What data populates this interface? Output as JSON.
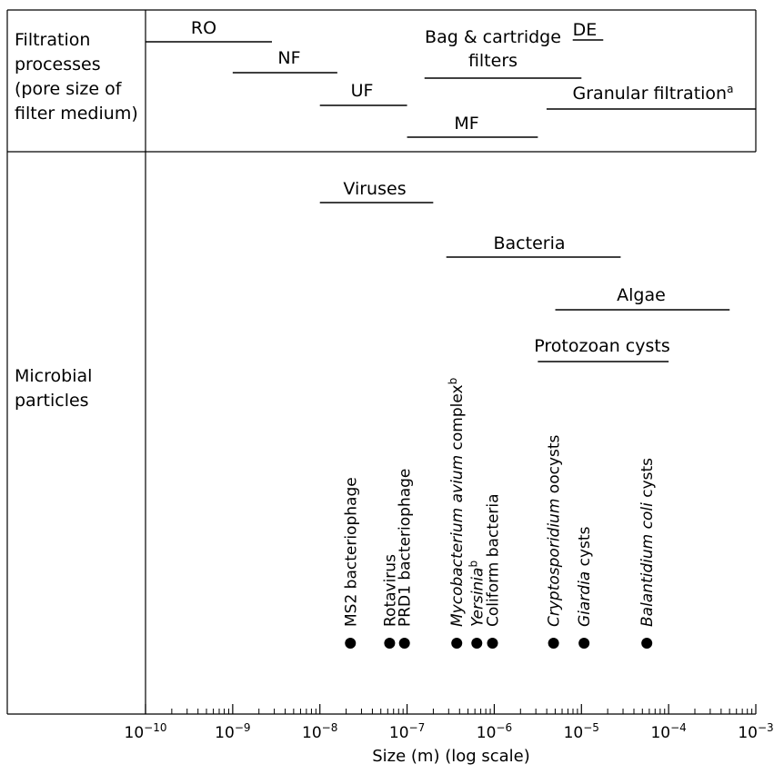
{
  "figure": {
    "side_labels": {
      "filtration": [
        "Filtration",
        "processes",
        "(pore size of",
        "filter medium)"
      ],
      "microbial": [
        "Microbial",
        "particles"
      ]
    },
    "axis": {
      "title": "Size (m) (log scale)",
      "scale": "log",
      "range": [
        "1e-10",
        "1e-3"
      ],
      "tick_labels": [
        {
          "base": "10",
          "exp": "−10",
          "value": "1e-10"
        },
        {
          "base": "10",
          "exp": "−9",
          "value": "1e-9"
        },
        {
          "base": "10",
          "exp": "−8",
          "value": "1e-8"
        },
        {
          "base": "10",
          "exp": "−7",
          "value": "1e-7"
        },
        {
          "base": "10",
          "exp": "−6",
          "value": "1e-6"
        },
        {
          "base": "10",
          "exp": "−5",
          "value": "1e-5"
        },
        {
          "base": "10",
          "exp": "−4",
          "value": "1e-4"
        },
        {
          "base": "10",
          "exp": "−3",
          "value": "1e-3"
        }
      ]
    },
    "filtration_processes": [
      {
        "label": "RO",
        "sup": "",
        "range_log10": [
          -10.0,
          -8.55
        ]
      },
      {
        "label": "NF",
        "sup": "",
        "range_log10": [
          -9.0,
          -7.8
        ]
      },
      {
        "label": "UF",
        "sup": "",
        "range_log10": [
          -8.0,
          -7.0
        ]
      },
      {
        "label": "MF",
        "sup": "",
        "range_log10": [
          -7.0,
          -5.5
        ]
      },
      {
        "label": "Bag & cartridge filters",
        "sup": "",
        "range_log10": [
          -6.8,
          -5.0
        ]
      },
      {
        "label": "DE",
        "sup": "",
        "range_log10": [
          -5.1,
          -4.75
        ]
      },
      {
        "label": "Granular filtration",
        "sup": "a",
        "range_log10": [
          -5.4,
          -3.0
        ]
      }
    ],
    "microbial_groups": [
      {
        "label": "Viruses",
        "range_log10": [
          -8.0,
          -6.7
        ]
      },
      {
        "label": "Bacteria",
        "range_log10": [
          -6.55,
          -4.55
        ]
      },
      {
        "label": "Algae",
        "range_log10": [
          -5.3,
          -3.3
        ]
      },
      {
        "label": "Protozoan cysts",
        "range_log10": [
          -5.5,
          -4.0
        ]
      }
    ],
    "organisms": [
      {
        "parts": [
          {
            "t": "MS2 bacteriophage",
            "i": false
          }
        ],
        "size_log10": -7.65
      },
      {
        "parts": [
          {
            "t": "Rotavirus",
            "i": false
          }
        ],
        "size_log10": -7.2
      },
      {
        "parts": [
          {
            "t": "PRD1 bacteriophage",
            "i": false
          }
        ],
        "size_log10": -7.03
      },
      {
        "parts": [
          {
            "t": "Mycobacterium avium",
            "i": true
          },
          {
            "t": " complex",
            "i": false
          },
          {
            "t": "b",
            "i": false,
            "sup": true
          }
        ],
        "size_log10": -6.43
      },
      {
        "parts": [
          {
            "t": "Yersinia",
            "i": true
          },
          {
            "t": "b",
            "i": false,
            "sup": true
          }
        ],
        "size_log10": -6.2
      },
      {
        "parts": [
          {
            "t": "Coliform bacteria",
            "i": false
          }
        ],
        "size_log10": -6.02
      },
      {
        "parts": [
          {
            "t": "Cryptosporidium",
            "i": true
          },
          {
            "t": " oocysts",
            "i": false
          }
        ],
        "size_log10": -5.32
      },
      {
        "parts": [
          {
            "t": "Giardia",
            "i": true
          },
          {
            "t": " cysts",
            "i": false
          }
        ],
        "size_log10": -4.97
      },
      {
        "parts": [
          {
            "t": "Balantidium coli",
            "i": true
          },
          {
            "t": " cysts",
            "i": false
          }
        ],
        "size_log10": -4.25
      }
    ]
  }
}
